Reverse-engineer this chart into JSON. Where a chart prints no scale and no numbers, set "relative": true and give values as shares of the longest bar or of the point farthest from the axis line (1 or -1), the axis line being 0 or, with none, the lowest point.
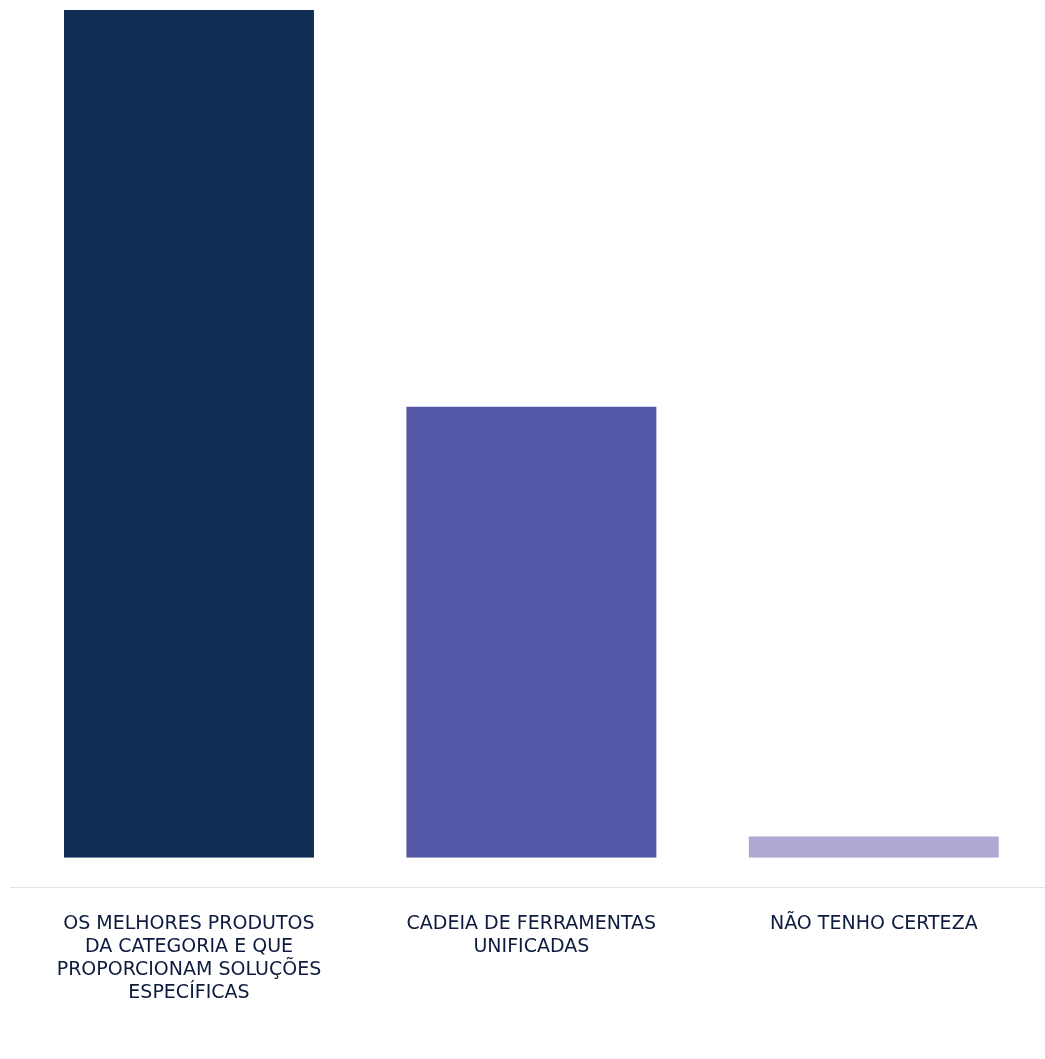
{
  "chart_data": {
    "type": "bar",
    "relative": true,
    "categories": [
      "OS MELHORES PRODUTOS DA CATEGORIA E QUE PROPORCIONAM SOLUÇÕES ESPECÍFICAS",
      "CADEIA DE FERRAMENTAS UNIFICADAS",
      "NÃO TENHO CERTEZA"
    ],
    "values": [
      1,
      0.532,
      0.025
    ],
    "colors": [
      "#0f2d55",
      "#5458a6",
      "#b0a8d2"
    ],
    "grid": false,
    "legend": false
  }
}
